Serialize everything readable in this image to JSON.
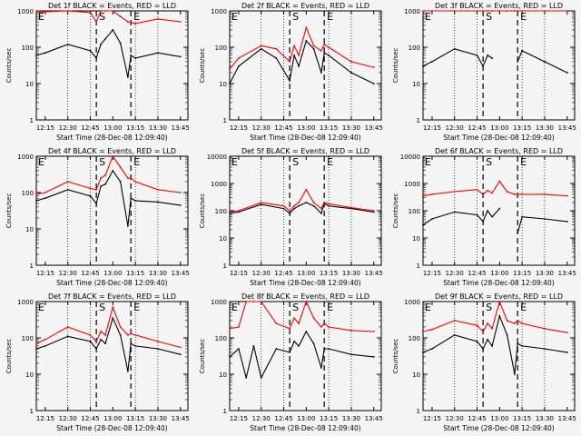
{
  "figure": {
    "xticks": [
      "12:15",
      "12:30",
      "12:45",
      "13:00",
      "13:15",
      "13:30",
      "13:45"
    ],
    "xlabel": "Start Time (28-Dec-08 12:09:40)",
    "ylabel": "Counts/sec",
    "marker_start": "S",
    "marker_end": "E",
    "corner_label": "E",
    "colors": {
      "events": "#000000",
      "lld": "#ff0000",
      "background": "#f4f4f4"
    }
  },
  "chart_data": [
    {
      "type": "line",
      "title": "Det 1f BLACK = Events, RED = LLD",
      "ylim": [
        1,
        1000
      ],
      "yticks": [
        "1",
        "10",
        "100",
        "1000"
      ],
      "x": [
        "12:09",
        "12:15",
        "12:30",
        "12:45",
        "12:49",
        "12:52",
        "12:55",
        "13:00",
        "13:05",
        "13:10",
        "13:12",
        "13:15",
        "13:30",
        "13:45"
      ],
      "series": [
        {
          "name": "Events",
          "values": [
            60,
            70,
            120,
            80,
            50,
            120,
            170,
            300,
            130,
            15,
            60,
            50,
            70,
            55
          ]
        },
        {
          "name": "LLD",
          "values": [
            900,
            950,
            1000,
            900,
            500,
            1000,
            1000,
            1000,
            700,
            500,
            480,
            450,
            600,
            500
          ]
        }
      ]
    },
    {
      "type": "line",
      "title": "Det 2f BLACK = Events, RED = LLD",
      "ylim": [
        1,
        1000
      ],
      "yticks": [
        "1",
        "10",
        "100",
        "1000"
      ],
      "x": [
        "12:09",
        "12:15",
        "12:30",
        "12:40",
        "12:49",
        "12:52",
        "12:55",
        "13:00",
        "13:05",
        "13:10",
        "13:12",
        "13:15",
        "13:30",
        "13:45"
      ],
      "series": [
        {
          "name": "Events",
          "values": [
            10,
            30,
            90,
            50,
            12,
            60,
            30,
            150,
            90,
            20,
            70,
            60,
            20,
            10
          ]
        },
        {
          "name": "LLD",
          "values": [
            25,
            50,
            110,
            90,
            40,
            110,
            60,
            350,
            110,
            80,
            120,
            100,
            40,
            28
          ]
        }
      ]
    },
    {
      "type": "line",
      "title": "Det 3f BLACK = Events, RED = LLD",
      "ylim": [
        1,
        1000
      ],
      "yticks": [
        "1",
        "10",
        "100",
        "1000"
      ],
      "x": [
        "12:09",
        "12:15",
        "12:30",
        "12:45",
        "12:49",
        "12:52",
        "12:55",
        "13:00",
        "13:05",
        "13:10",
        "13:12",
        "13:15",
        "13:30",
        "13:45"
      ],
      "series": [
        {
          "name": "Events",
          "values": [
            30,
            40,
            90,
            60,
            30,
            60,
            50,
            null,
            null,
            null,
            40,
            80,
            40,
            20
          ]
        },
        {
          "name": "LLD",
          "values": [
            1000,
            1000,
            1000,
            1000,
            1000,
            1000,
            1000,
            1000,
            1000,
            1000,
            1000,
            1000,
            1000,
            1000
          ]
        }
      ]
    },
    {
      "type": "line",
      "title": "Det 4f BLACK = Events, RED = LLD",
      "ylim": [
        1,
        1000
      ],
      "yticks": [
        "1",
        "10",
        "100",
        "1000"
      ],
      "x": [
        "12:09",
        "12:15",
        "12:30",
        "12:45",
        "12:49",
        "12:52",
        "12:55",
        "13:00",
        "13:05",
        "13:10",
        "13:12",
        "13:15",
        "13:30",
        "13:45"
      ],
      "series": [
        {
          "name": "Events",
          "values": [
            60,
            70,
            120,
            80,
            50,
            150,
            170,
            400,
            200,
            12,
            70,
            60,
            55,
            45
          ]
        },
        {
          "name": "LLD",
          "values": [
            90,
            100,
            200,
            130,
            120,
            250,
            300,
            1200,
            500,
            250,
            250,
            200,
            120,
            100
          ]
        }
      ]
    },
    {
      "type": "line",
      "title": "Det 5f BLACK = Events, RED = LLD",
      "ylim": [
        1,
        10000
      ],
      "yticks": [
        "1",
        "10",
        "100",
        "1000",
        "10000"
      ],
      "x": [
        "12:09",
        "12:15",
        "12:30",
        "12:45",
        "12:49",
        "12:52",
        "12:55",
        "13:00",
        "13:05",
        "13:10",
        "13:12",
        "13:15",
        "13:30",
        "13:45"
      ],
      "series": [
        {
          "name": "Events",
          "values": [
            80,
            90,
            170,
            120,
            80,
            120,
            150,
            200,
            150,
            80,
            180,
            150,
            120,
            90
          ]
        },
        {
          "name": "LLD",
          "values": [
            90,
            100,
            200,
            150,
            100,
            150,
            200,
            600,
            200,
            120,
            200,
            180,
            130,
            100
          ]
        }
      ]
    },
    {
      "type": "line",
      "title": "Det 6f BLACK = Events, RED = LLD",
      "ylim": [
        1,
        10000
      ],
      "yticks": [
        "1",
        "10",
        "100",
        "1000",
        "10000"
      ],
      "x": [
        "12:09",
        "12:15",
        "12:30",
        "12:45",
        "12:49",
        "12:52",
        "12:55",
        "13:00",
        "13:05",
        "13:10",
        "13:12",
        "13:15",
        "13:30",
        "13:45"
      ],
      "series": [
        {
          "name": "Events",
          "values": [
            30,
            50,
            90,
            70,
            40,
            100,
            60,
            120,
            null,
            null,
            15,
            60,
            50,
            40
          ]
        },
        {
          "name": "LLD",
          "values": [
            350,
            400,
            500,
            600,
            400,
            550,
            450,
            1200,
            500,
            400,
            400,
            400,
            400,
            350
          ]
        }
      ]
    },
    {
      "type": "line",
      "title": "Det 7f BLACK = Events, RED = LLD",
      "ylim": [
        1,
        1000
      ],
      "yticks": [
        "1",
        "10",
        "100",
        "1000"
      ],
      "x": [
        "12:09",
        "12:15",
        "12:30",
        "12:45",
        "12:49",
        "12:52",
        "12:55",
        "13:00",
        "13:05",
        "13:10",
        "13:12",
        "13:15",
        "13:30",
        "13:45"
      ],
      "series": [
        {
          "name": "Events",
          "values": [
            50,
            60,
            110,
            80,
            50,
            90,
            70,
            350,
            120,
            12,
            70,
            60,
            50,
            35
          ]
        },
        {
          "name": "LLD",
          "values": [
            70,
            90,
            200,
            120,
            80,
            150,
            120,
            700,
            200,
            120,
            130,
            120,
            80,
            55
          ]
        }
      ]
    },
    {
      "type": "line",
      "title": "Det 8f BLACK = Events, RED = LLD",
      "ylim": [
        1,
        1000
      ],
      "yticks": [
        "1",
        "10",
        "100",
        "1000"
      ],
      "x": [
        "12:09",
        "12:15",
        "12:20",
        "12:25",
        "12:30",
        "12:40",
        "12:49",
        "12:52",
        "12:55",
        "13:00",
        "13:05",
        "13:10",
        "13:12",
        "13:15",
        "13:30",
        "13:45"
      ],
      "series": [
        {
          "name": "Events",
          "values": [
            30,
            50,
            8,
            60,
            8,
            50,
            40,
            80,
            60,
            150,
            70,
            15,
            50,
            50,
            35,
            30
          ]
        },
        {
          "name": "LLD",
          "values": [
            180,
            200,
            1000,
            1000,
            1000,
            250,
            180,
            350,
            250,
            1000,
            350,
            200,
            250,
            200,
            160,
            150
          ]
        }
      ]
    },
    {
      "type": "line",
      "title": "Det 9f BLACK = Events, RED = LLD",
      "ylim": [
        1,
        1000
      ],
      "yticks": [
        "1",
        "10",
        "100",
        "1000"
      ],
      "x": [
        "12:09",
        "12:15",
        "12:30",
        "12:45",
        "12:49",
        "12:52",
        "12:55",
        "13:00",
        "13:05",
        "13:10",
        "13:12",
        "13:15",
        "13:30",
        "13:45"
      ],
      "series": [
        {
          "name": "Events",
          "values": [
            40,
            50,
            120,
            80,
            50,
            90,
            60,
            400,
            120,
            10,
            70,
            60,
            50,
            40
          ]
        },
        {
          "name": "LLD",
          "values": [
            150,
            170,
            300,
            220,
            150,
            250,
            180,
            1000,
            300,
            250,
            300,
            250,
            180,
            140
          ]
        }
      ]
    }
  ]
}
